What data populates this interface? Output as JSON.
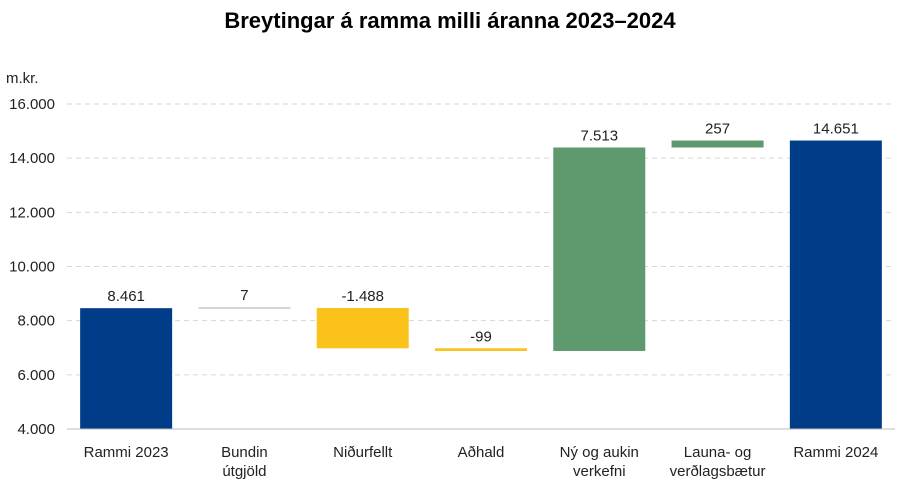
{
  "chart_data": {
    "type": "waterfall",
    "title": "Breytingar á ramma milli áranna 2023–2024",
    "ylabel": "m.kr.",
    "ylim": [
      4000,
      16000
    ],
    "yticks": [
      4000,
      6000,
      8000,
      10000,
      12000,
      14000,
      16000
    ],
    "ytick_labels": [
      "4.000",
      "6.000",
      "8.000",
      "10.000",
      "12.000",
      "14.000",
      "16.000"
    ],
    "grid": true,
    "colors": {
      "total": "#003C87",
      "decrease": "#FBC21B",
      "increase": "#5E9A6E",
      "neutral": "#C8C8C8"
    },
    "bars": [
      {
        "category": [
          "Rammi 2023"
        ],
        "label": "8.461",
        "kind": "total",
        "start": 0,
        "end": 8461
      },
      {
        "category": [
          "Bundin",
          "útgjöld"
        ],
        "label": "7",
        "kind": "neutral",
        "start": 8461,
        "end": 8468
      },
      {
        "category": [
          "Niðurfellt"
        ],
        "label": "-1.488",
        "kind": "decrease",
        "start": 8468,
        "end": 6980
      },
      {
        "category": [
          "Aðhald"
        ],
        "label": "-99",
        "kind": "decrease",
        "start": 6980,
        "end": 6881
      },
      {
        "category": [
          "Ný og aukin",
          "verkefni"
        ],
        "label": "7.513",
        "kind": "increase",
        "start": 6881,
        "end": 14394
      },
      {
        "category": [
          "Launa- og",
          "verðlagsbætur"
        ],
        "label": "257",
        "kind": "increase",
        "start": 14394,
        "end": 14651
      },
      {
        "category": [
          "Rammi 2024"
        ],
        "label": "14.651",
        "kind": "total",
        "start": 0,
        "end": 14651
      }
    ]
  }
}
